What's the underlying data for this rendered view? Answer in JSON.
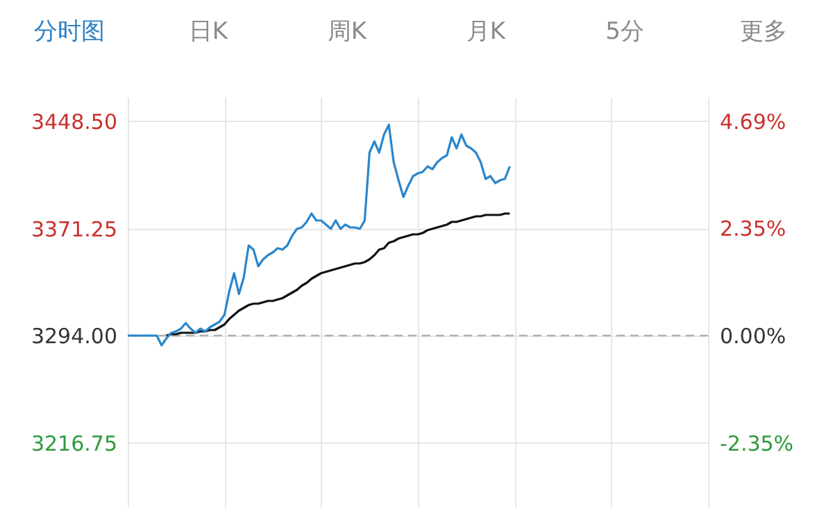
{
  "chart_data": {
    "type": "line",
    "annotations": [
      "分时图",
      "日K",
      "周K",
      "月K",
      "5分",
      "更多"
    ],
    "categories": [
      null,
      null,
      null,
      null,
      null,
      null,
      null,
      null,
      null,
      null,
      null,
      null,
      null,
      null,
      null,
      null,
      null,
      null,
      null,
      null,
      null,
      null,
      null,
      null,
      null,
      null,
      null,
      null,
      null,
      null,
      null,
      null,
      null,
      null,
      null,
      null,
      null,
      null,
      null,
      null,
      null,
      null,
      null,
      null,
      null,
      null,
      null,
      null,
      null,
      null,
      null,
      null,
      null,
      null,
      null,
      null,
      null,
      null,
      null,
      null,
      null,
      null,
      null,
      null,
      null,
      null,
      null,
      null,
      null,
      null,
      null,
      null,
      null,
      null,
      null,
      null,
      null,
      null,
      null,
      null,
      null,
      null,
      null,
      null,
      null,
      null,
      null,
      null,
      null,
      null,
      null,
      null,
      null,
      null,
      null,
      null,
      null,
      null,
      null,
      null,
      null,
      null,
      null,
      null,
      null,
      null,
      null,
      null,
      null,
      null,
      null,
      null,
      null,
      null,
      null,
      null,
      null,
      null,
      null,
      null,
      null
    ],
    "series": [
      {
        "color": "#2a86cc",
        "values": [
          3294,
          3294,
          3294,
          3294,
          3294,
          3294,
          3294,
          3287,
          3292,
          3296,
          3297,
          3299,
          3303,
          3299,
          3296,
          3299,
          3297,
          3300,
          3302,
          3304,
          3309,
          3326,
          3339,
          3324,
          3336,
          3359,
          3356,
          3344,
          3349,
          3352,
          3354,
          3357,
          3356,
          3359,
          3366,
          3371,
          3372,
          3376,
          3382,
          3377,
          3377,
          3374,
          3371,
          3377,
          3371,
          3374,
          3372,
          3372,
          3371,
          3377,
          3426,
          3434,
          3426,
          3439,
          3446,
          3419,
          3406,
          3394,
          3402,
          3409,
          3411,
          3412,
          3416,
          3414,
          3419,
          3422,
          3424,
          3437,
          3429,
          3439,
          3431,
          3429,
          3426,
          3419,
          3407,
          3409,
          3404,
          3406,
          3407,
          3416,
          null,
          null,
          null,
          null,
          null,
          null,
          null,
          null,
          null,
          null,
          null,
          null,
          null,
          null,
          null,
          null,
          null,
          null,
          null,
          null,
          null,
          null,
          null,
          null,
          null,
          null,
          null,
          null,
          null,
          null,
          null,
          null,
          null,
          null,
          null,
          null,
          null,
          null,
          null,
          null,
          null
        ]
      },
      {
        "color": "#111111",
        "values": [
          null,
          null,
          null,
          null,
          null,
          null,
          null,
          null,
          3294,
          3295,
          3295,
          3296,
          3296,
          3296,
          3296,
          3297,
          3297,
          3298,
          3298,
          3300,
          3302,
          3306,
          3309,
          3312,
          3314,
          3316,
          3317,
          3317,
          3318,
          3319,
          3319,
          3320,
          3321,
          3323,
          3325,
          3327,
          3330,
          3332,
          3335,
          3337,
          3339,
          3340,
          3341,
          3342,
          3343,
          3344,
          3345,
          3346,
          3346,
          3347,
          3349,
          3352,
          3356,
          3357,
          3361,
          3362,
          3364,
          3365,
          3366,
          3367,
          3367,
          3368,
          3370,
          3371,
          3372,
          3373,
          3374,
          3376,
          3376,
          3377,
          3378,
          3379,
          3380,
          3380,
          3381,
          3381,
          3381,
          3381,
          3382,
          3382,
          null,
          null,
          null,
          null,
          null,
          null,
          null,
          null,
          null,
          null,
          null,
          null,
          null,
          null,
          null,
          null,
          null,
          null,
          null,
          null,
          null,
          null,
          null,
          null,
          null,
          null,
          null,
          null,
          null,
          null,
          null,
          null,
          null,
          null,
          null,
          null,
          null,
          null,
          null,
          null,
          null
        ]
      }
    ],
    "ylim": [
      3170,
      3466
    ],
    "yticks": [
      {
        "value": 3448.5,
        "label": "3448.50"
      },
      {
        "value": 3371.25,
        "label": "3371.25"
      },
      {
        "value": 3294,
        "label": "3294.00"
      },
      {
        "value": 3216.75,
        "label": "3216.75"
      }
    ],
    "y2lim": [
      -3.76,
      5.22
    ],
    "y2ticks": [
      {
        "value": 4.69,
        "label": "4.69%"
      },
      {
        "value": 2.35,
        "label": "2.35%"
      },
      {
        "value": 0,
        "label": "0.00%"
      },
      {
        "value": -2.35,
        "label": "-2.35%"
      }
    ],
    "ref_lines": [
      {
        "axis": "y",
        "value": 3294,
        "color": "#b0b0b0",
        "line_style": "dashed"
      }
    ],
    "grid": true,
    "line_style": "solid",
    "tick_labels": "y"
  }
}
